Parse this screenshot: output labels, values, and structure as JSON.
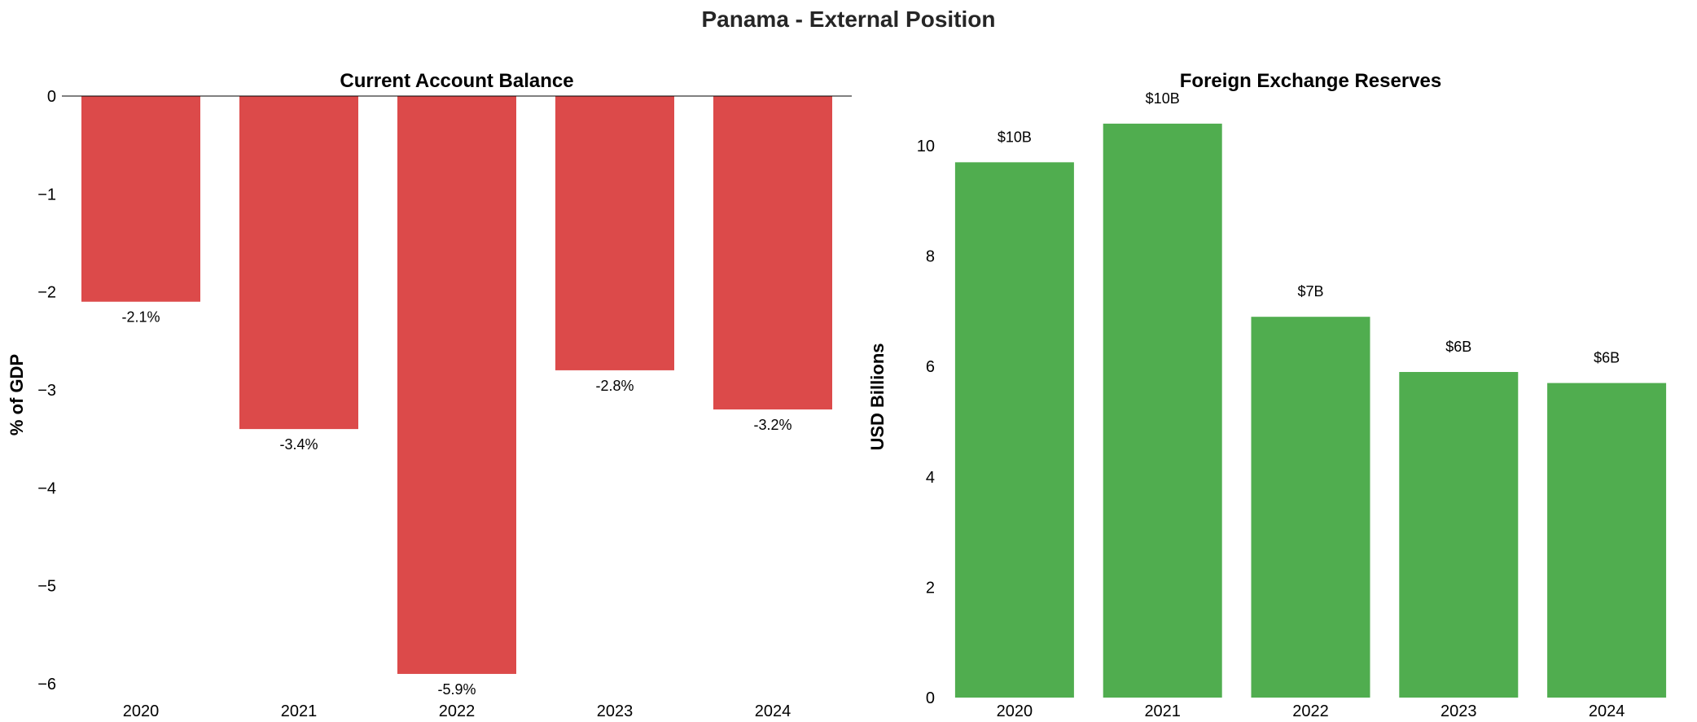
{
  "figure": {
    "title": "Panama - External Position"
  },
  "chart_data": [
    {
      "type": "bar",
      "title": "Current Account Balance",
      "xlabel": "",
      "ylabel": "% of GDP",
      "categories": [
        "2020",
        "2021",
        "2022",
        "2023",
        "2024"
      ],
      "values": [
        -2.1,
        -3.4,
        -5.9,
        -2.8,
        -3.2
      ],
      "data_labels": [
        "-2.1%",
        "-3.4%",
        "-5.9%",
        "-2.8%",
        "-3.2%"
      ],
      "ylim": [
        -6.1,
        0.0
      ],
      "yticks": [
        0,
        -1,
        -2,
        -3,
        -4,
        -5,
        -6
      ],
      "ytick_labels": [
        "0",
        "−1",
        "−2",
        "−3",
        "−4",
        "−5",
        "−6"
      ],
      "color": "#dc4a4a",
      "zero_line": true,
      "grid": false
    },
    {
      "type": "bar",
      "title": "Foreign Exchange Reserves",
      "xlabel": "",
      "ylabel": "USD Billions",
      "categories": [
        "2020",
        "2021",
        "2022",
        "2023",
        "2024"
      ],
      "values": [
        9.7,
        10.4,
        6.9,
        5.9,
        5.7
      ],
      "data_labels": [
        "$10B",
        "$10B",
        "$7B",
        "$6B",
        "$6B"
      ],
      "ylim": [
        0,
        10.9
      ],
      "yticks": [
        0,
        2,
        4,
        6,
        8,
        10
      ],
      "ytick_labels": [
        "0",
        "2",
        "4",
        "6",
        "8",
        "10"
      ],
      "color": "#50ad4f",
      "zero_line": false,
      "grid": false
    }
  ]
}
